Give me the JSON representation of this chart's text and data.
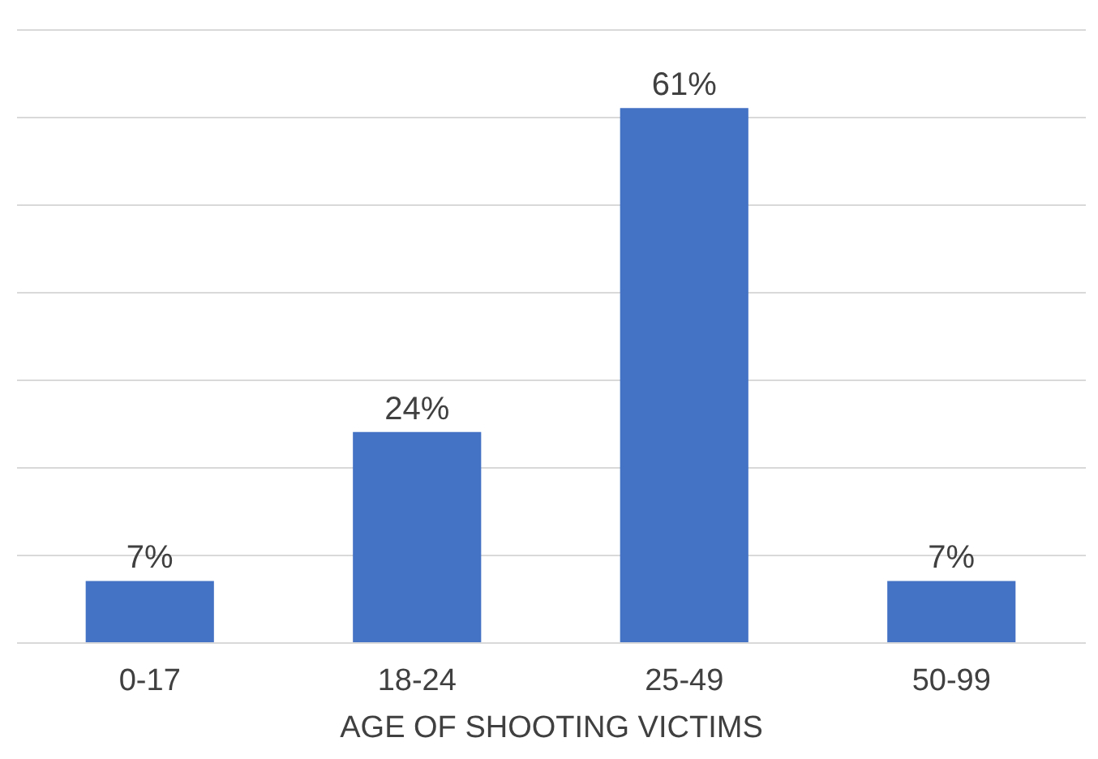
{
  "chart_data": {
    "type": "bar",
    "xlabel": "AGE OF SHOOTING VICTIMS",
    "categories": [
      "0-17",
      "18-24",
      "25-49",
      "50-99"
    ],
    "values": [
      7,
      24,
      61,
      7
    ],
    "value_labels": [
      "7%",
      "24%",
      "61%",
      "7%"
    ],
    "color": "#4472c4",
    "ylim": [
      0,
      70
    ],
    "yticks": [
      {
        "value": 0,
        "label": null
      },
      {
        "value": 10,
        "label": null
      },
      {
        "value": 20,
        "label": null
      },
      {
        "value": 30,
        "label": null
      },
      {
        "value": 40,
        "label": null
      },
      {
        "value": 50,
        "label": null
      },
      {
        "value": 60,
        "label": null
      },
      {
        "value": 70,
        "label": null
      }
    ],
    "grid": "y",
    "tick_labels": "x"
  }
}
